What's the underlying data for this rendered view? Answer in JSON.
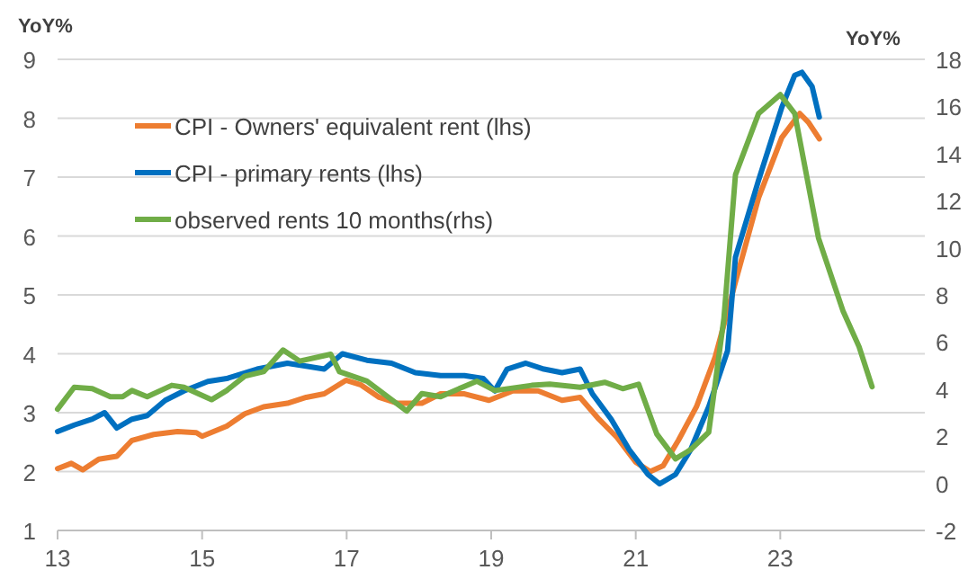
{
  "chart_data": {
    "type": "line",
    "ylabel": "YoY%",
    "y2label": "YoY%",
    "xlim": [
      13,
      25
    ],
    "xticks": [
      13,
      15,
      17,
      19,
      21,
      23
    ],
    "ylim": [
      1,
      9
    ],
    "yticks": [
      1,
      2,
      3,
      4,
      5,
      6,
      7,
      8,
      9
    ],
    "y2lim": [
      -2,
      18
    ],
    "y2ticks": [
      -2,
      0,
      2,
      4,
      6,
      8,
      10,
      12,
      14,
      16,
      18
    ],
    "grid": "y",
    "legend": "top left",
    "marker": "none",
    "line_style": "solid",
    "series": [
      {
        "name": "CPI - Owners' equivalent rent (lhs)",
        "color": "#ed7d31",
        "x": [
          13,
          13.19,
          13.35,
          13.57,
          13.82,
          14.03,
          14.33,
          14.66,
          14.92,
          15,
          15.34,
          15.59,
          15.85,
          16.18,
          16.44,
          16.69,
          16.99,
          17.2,
          17.45,
          17.7,
          18.04,
          18.3,
          18.63,
          18.97,
          19.3,
          19.65,
          19.98,
          20.23,
          20.49,
          20.74,
          21,
          21.2,
          21.38,
          21.59,
          21.84,
          22.1,
          22.38,
          22.7,
          23.02,
          23.27,
          23.39,
          23.54
        ],
        "values": [
          2.05,
          2.14,
          2.03,
          2.21,
          2.26,
          2.53,
          2.63,
          2.68,
          2.66,
          2.6,
          2.77,
          2.98,
          3.1,
          3.16,
          3.26,
          3.32,
          3.55,
          3.47,
          3.26,
          3.16,
          3.16,
          3.32,
          3.32,
          3.21,
          3.37,
          3.37,
          3.21,
          3.26,
          2.89,
          2.58,
          2.16,
          2.0,
          2.1,
          2.53,
          3.1,
          3.95,
          5.22,
          6.65,
          7.67,
          8.08,
          7.93,
          7.65
        ]
      },
      {
        "name": "CPI - primary rents (lhs)",
        "color": "#0070c0",
        "x": [
          13,
          13.23,
          13.48,
          13.65,
          13.82,
          14.03,
          14.24,
          14.49,
          14.75,
          15.08,
          15.34,
          15.76,
          16.18,
          16.44,
          16.69,
          16.94,
          17.28,
          17.62,
          17.95,
          18.3,
          18.63,
          18.89,
          19.05,
          19.22,
          19.48,
          19.73,
          19.98,
          20.23,
          20.4,
          20.66,
          20.91,
          21.17,
          21.33,
          21.55,
          21.76,
          22.01,
          22.27,
          22.38,
          22.7,
          23.02,
          23.2,
          23.3,
          23.44,
          23.54
        ],
        "values": [
          2.68,
          2.79,
          2.89,
          3.0,
          2.74,
          2.89,
          2.95,
          3.21,
          3.37,
          3.53,
          3.58,
          3.74,
          3.84,
          3.79,
          3.74,
          4.0,
          3.89,
          3.84,
          3.68,
          3.63,
          3.63,
          3.58,
          3.37,
          3.74,
          3.84,
          3.74,
          3.68,
          3.74,
          3.32,
          2.89,
          2.37,
          1.95,
          1.79,
          1.95,
          2.37,
          3.1,
          4.05,
          5.64,
          6.95,
          8.18,
          8.73,
          8.78,
          8.54,
          8.02
        ]
      },
      {
        "name": "observed rents 10 months(rhs)",
        "color": "#70ad47",
        "axis": "y2",
        "x": [
          13,
          13.23,
          13.48,
          13.73,
          13.9,
          14.03,
          14.24,
          14.58,
          14.75,
          15.13,
          15.34,
          15.59,
          15.85,
          16.12,
          16.35,
          16.78,
          16.9,
          17.28,
          17.83,
          18.04,
          18.3,
          18.8,
          19.05,
          19.56,
          19.81,
          20.23,
          20.57,
          20.82,
          21.04,
          21.29,
          21.55,
          21.76,
          22.01,
          22.22,
          22.38,
          22.7,
          23.0,
          23.2,
          23.53,
          23.87,
          24.09,
          24.27
        ],
        "values": [
          3.15,
          4.08,
          4.02,
          3.68,
          3.68,
          3.94,
          3.68,
          4.16,
          4.08,
          3.55,
          3.94,
          4.55,
          4.74,
          5.66,
          5.19,
          5.48,
          4.74,
          4.34,
          3.07,
          3.81,
          3.68,
          4.34,
          3.94,
          4.16,
          4.21,
          4.08,
          4.29,
          4.02,
          4.21,
          2.1,
          1.04,
          1.43,
          2.17,
          7.0,
          13.1,
          15.7,
          16.5,
          15.7,
          10.4,
          7.3,
          5.8,
          4.1
        ]
      }
    ]
  }
}
